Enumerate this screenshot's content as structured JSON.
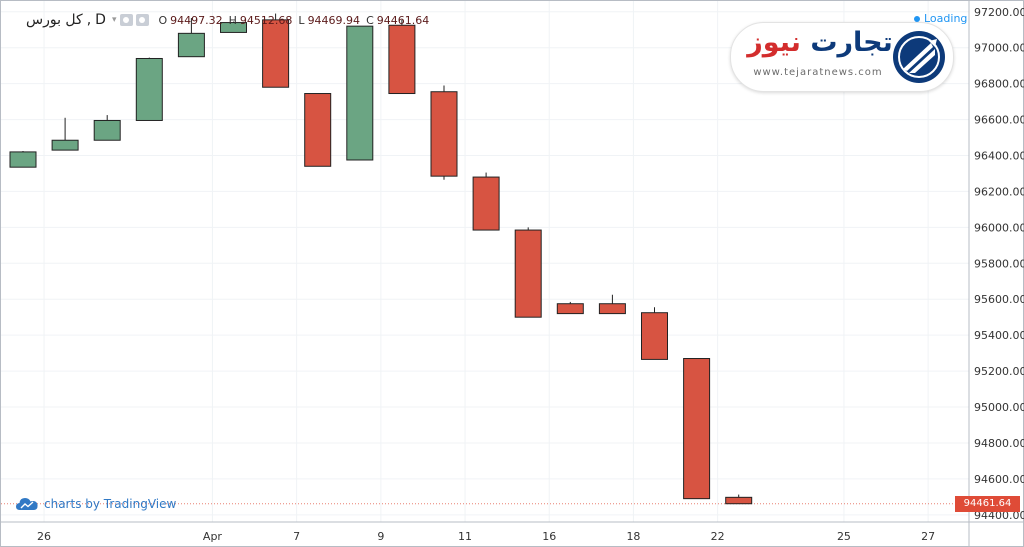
{
  "legend": {
    "symbol": "کل بورس",
    "separator": ",",
    "interval": "D",
    "caret": "▾",
    "o_label": "O",
    "o_value": "94497.32",
    "h_label": "H",
    "h_value": "94512.68",
    "l_label": "L",
    "l_value": "94469.94",
    "c_label": "C",
    "c_value": "94461.64"
  },
  "status": {
    "loading": "Loading"
  },
  "branding": {
    "tradingview_text": "charts by TradingView",
    "logo_word_a": "تجارت",
    "logo_word_b": "نیوز",
    "logo_site": "www.tejaratnews.com"
  },
  "colors": {
    "up": "#6ba583",
    "down": "#d75442",
    "last_price": "#df4b37"
  },
  "chart_data": {
    "type": "candlestick",
    "y_range": [
      94360,
      97260
    ],
    "y_ticks": [
      "97200.00",
      "97000.00",
      "96800.00",
      "96600.00",
      "96400.00",
      "96200.00",
      "96000.00",
      "95800.00",
      "95600.00",
      "95400.00",
      "95200.00",
      "95000.00",
      "94800.00",
      "94600.00",
      "94400.00"
    ],
    "x_ticks": [
      {
        "slot": 0.5,
        "label": "26"
      },
      {
        "slot": 4.5,
        "label": "Apr"
      },
      {
        "slot": 6.5,
        "label": "7"
      },
      {
        "slot": 8.5,
        "label": "9"
      },
      {
        "slot": 10.5,
        "label": "11"
      },
      {
        "slot": 12.5,
        "label": "16"
      },
      {
        "slot": 14.5,
        "label": "18"
      },
      {
        "slot": 16.5,
        "label": "22"
      },
      {
        "slot": 19.5,
        "label": "25"
      },
      {
        "slot": 21.5,
        "label": "27"
      }
    ],
    "slot_count": 23,
    "last_price": "94461.64",
    "candles": [
      {
        "o": 96335,
        "h": 96425,
        "l": 96335,
        "c": 96420
      },
      {
        "o": 96430,
        "h": 96610,
        "l": 96430,
        "c": 96485
      },
      {
        "o": 96485,
        "h": 96625,
        "l": 96485,
        "c": 96595
      },
      {
        "o": 96595,
        "h": 96945,
        "l": 96595,
        "c": 96940
      },
      {
        "o": 96950,
        "h": 97165,
        "l": 96950,
        "c": 97080
      },
      {
        "o": 97085,
        "h": 97145,
        "l": 97085,
        "c": 97140
      },
      {
        "o": 97155,
        "h": 97190,
        "l": 96780,
        "c": 96780
      },
      {
        "o": 96745,
        "h": 96745,
        "l": 96340,
        "c": 96340
      },
      {
        "o": 96375,
        "h": 97120,
        "l": 96375,
        "c": 97120
      },
      {
        "o": 97125,
        "h": 97155,
        "l": 96745,
        "c": 96745
      },
      {
        "o": 96755,
        "h": 96790,
        "l": 96265,
        "c": 96285
      },
      {
        "o": 96280,
        "h": 96305,
        "l": 95985,
        "c": 95985
      },
      {
        "o": 95985,
        "h": 96000,
        "l": 95500,
        "c": 95500
      },
      {
        "o": 95575,
        "h": 95585,
        "l": 95520,
        "c": 95520
      },
      {
        "o": 95575,
        "h": 95625,
        "l": 95520,
        "c": 95520
      },
      {
        "o": 95525,
        "h": 95555,
        "l": 95265,
        "c": 95265
      },
      {
        "o": 95270,
        "h": 95270,
        "l": 94490,
        "c": 94490
      },
      {
        "o": 94497.32,
        "h": 94512.68,
        "l": 94469.94,
        "c": 94461.64
      }
    ]
  }
}
